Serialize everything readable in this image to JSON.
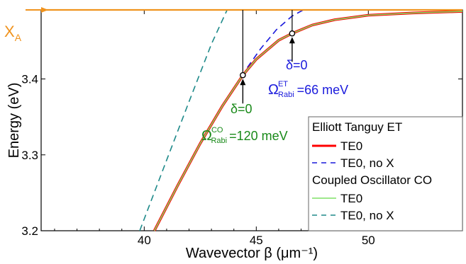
{
  "chart_data": {
    "type": "line",
    "xlabel": "Wavevector β (μm⁻¹)",
    "ylabel": "Energy (eV)",
    "xlim": [
      35.4,
      54.2
    ],
    "ylim": [
      3.2,
      3.491
    ],
    "xticks": [
      40,
      45,
      50
    ],
    "yticks": [
      3.2,
      3.3,
      3.4
    ],
    "xtick_labels": [
      "40",
      "45",
      "50"
    ],
    "ytick_labels": [
      "3.2",
      "3.3",
      "3.4"
    ],
    "exciton_line": {
      "label": "X",
      "subscript": "A",
      "energy": 3.491,
      "color": "#f0931e"
    },
    "series": [
      {
        "name": "TE0",
        "group": "Elliott Tanguy ET",
        "color": "#ff0000",
        "style": "solid",
        "x": [
          40.45,
          41.5,
          42.5,
          43.5,
          44.4,
          45.0,
          46.0,
          46.6,
          47.5,
          48.5,
          50.0,
          52.0,
          54.2
        ],
        "y": [
          3.2,
          3.26,
          3.315,
          3.365,
          3.405,
          3.426,
          3.451,
          3.46,
          3.471,
          3.478,
          3.484,
          3.487,
          3.489
        ]
      },
      {
        "name": "TE0, no X",
        "group": "Elliott Tanguy ET",
        "color": "#1a1adc",
        "style": "dashed",
        "x": [
          44.6,
          45.2,
          45.9,
          46.6,
          47.1
        ],
        "y": [
          3.415,
          3.44,
          3.465,
          3.483,
          3.491
        ]
      },
      {
        "name": "TE0",
        "group": "Coupled Oscillator CO",
        "color": "#7fe066",
        "style": "solid",
        "x": [
          40.45,
          41.5,
          42.5,
          43.5,
          44.4,
          45.0,
          46.0,
          46.6,
          47.5,
          48.5,
          50.0,
          52.0,
          54.2
        ],
        "y": [
          3.2,
          3.26,
          3.315,
          3.365,
          3.405,
          3.426,
          3.451,
          3.46,
          3.471,
          3.478,
          3.484,
          3.487,
          3.489
        ]
      },
      {
        "name": "TE0, no X",
        "group": "Coupled Oscillator CO",
        "color": "#1e8a8a",
        "style": "dashed",
        "x": [
          39.8,
          41.0,
          42.0,
          43.0,
          43.7
        ],
        "y": [
          3.2,
          3.293,
          3.37,
          3.446,
          3.491
        ]
      }
    ],
    "vertical_markers": [
      {
        "x": 44.4,
        "y_low": 3.405,
        "y_high": 3.491
      },
      {
        "x": 46.6,
        "y_low": 3.46,
        "y_high": 3.491
      }
    ],
    "annotations": [
      {
        "id": "delta_co",
        "text": "δ=0",
        "color": "#1a8a1a"
      },
      {
        "id": "delta_et",
        "text": "δ=0",
        "color": "#1a1adc"
      },
      {
        "id": "rabi_et",
        "symbol": "Ω",
        "sup": "ET",
        "sub": "Rabi",
        "text": "=66 meV",
        "color": "#1a1adc"
      },
      {
        "id": "rabi_co",
        "symbol": "Ω",
        "sup": "CO",
        "sub": "Rabi",
        "text": "=120 meV",
        "color": "#1a8a1a"
      }
    ],
    "legend": {
      "placement": "bottom-right",
      "groups": [
        {
          "title": "Elliott Tanguy ET",
          "entries": [
            {
              "label": "TE0",
              "color": "#ff0000",
              "style": "solid"
            },
            {
              "label": "TE0, no X",
              "color": "#1a1adc",
              "style": "dashed"
            }
          ]
        },
        {
          "title": "Coupled Oscillator CO",
          "entries": [
            {
              "label": "TE0",
              "color": "#7fe066",
              "style": "solid"
            },
            {
              "label": "TE0, no X",
              "color": "#1e8a8a",
              "style": "dashed"
            }
          ]
        }
      ]
    },
    "grid": false
  }
}
